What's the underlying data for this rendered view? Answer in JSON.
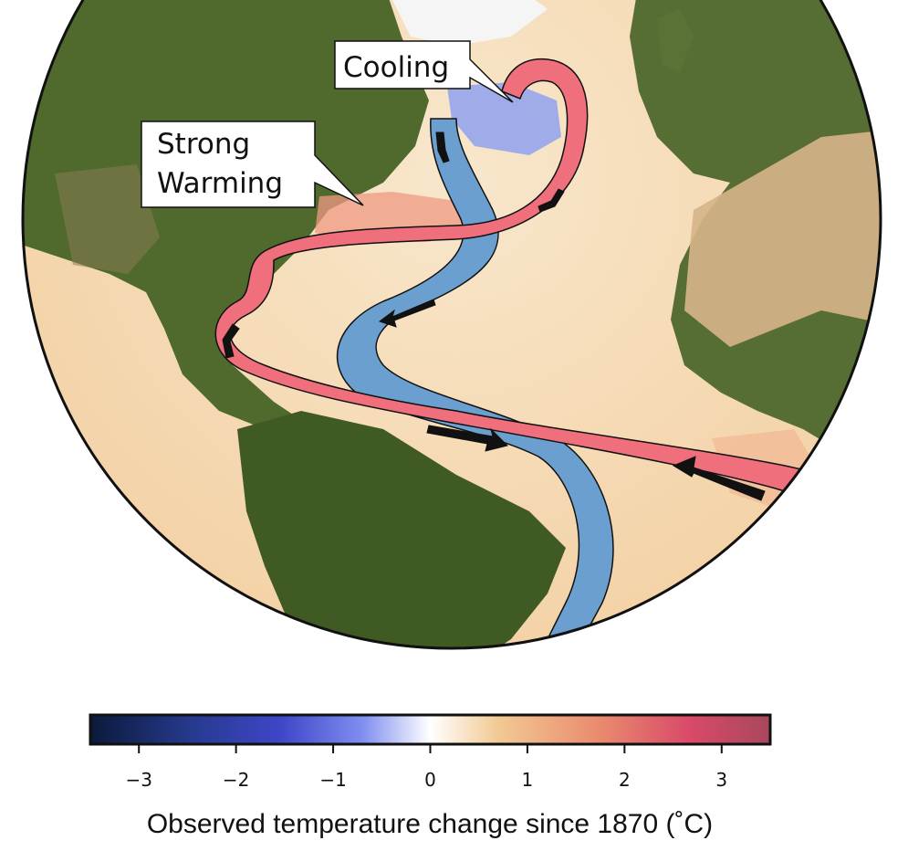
{
  "annotations": {
    "cooling": "Cooling",
    "strong_warming_line1": "Strong",
    "strong_warming_line2": "Warming"
  },
  "colorbar": {
    "label": "Observed temperature change since 1870 (˚C)",
    "range": [
      -3.5,
      3.5
    ],
    "ticks": [
      {
        "value": -3,
        "label": "−3"
      },
      {
        "value": -2,
        "label": "−2"
      },
      {
        "value": -1,
        "label": "−1"
      },
      {
        "value": 0,
        "label": "0"
      },
      {
        "value": 1,
        "label": "1"
      },
      {
        "value": 2,
        "label": "2"
      },
      {
        "value": 3,
        "label": "3"
      }
    ],
    "colors": {
      "cold_extreme": "#0b1a3a",
      "cold": "#3f46c8",
      "cool": "#7f8ef0",
      "neutral": "#ffffff",
      "warm": "#f2c993",
      "hot": "#e98a6e",
      "hot_extreme": "#a8475c"
    }
  },
  "currents": {
    "warm_color": "#ef6f7c",
    "cold_color": "#6a9fd0"
  },
  "colors": {
    "ocean_warm": "#f6dcb8",
    "land": "#4f6a2c",
    "cooling_patch": "#8fa2ee",
    "warming_patch": "#ef9a83",
    "ice": "#f7f7f7"
  },
  "map": {
    "projection": "orthographic",
    "region": "Atlantic Ocean",
    "feature": "Atlantic Meridional Overturning Circulation"
  }
}
